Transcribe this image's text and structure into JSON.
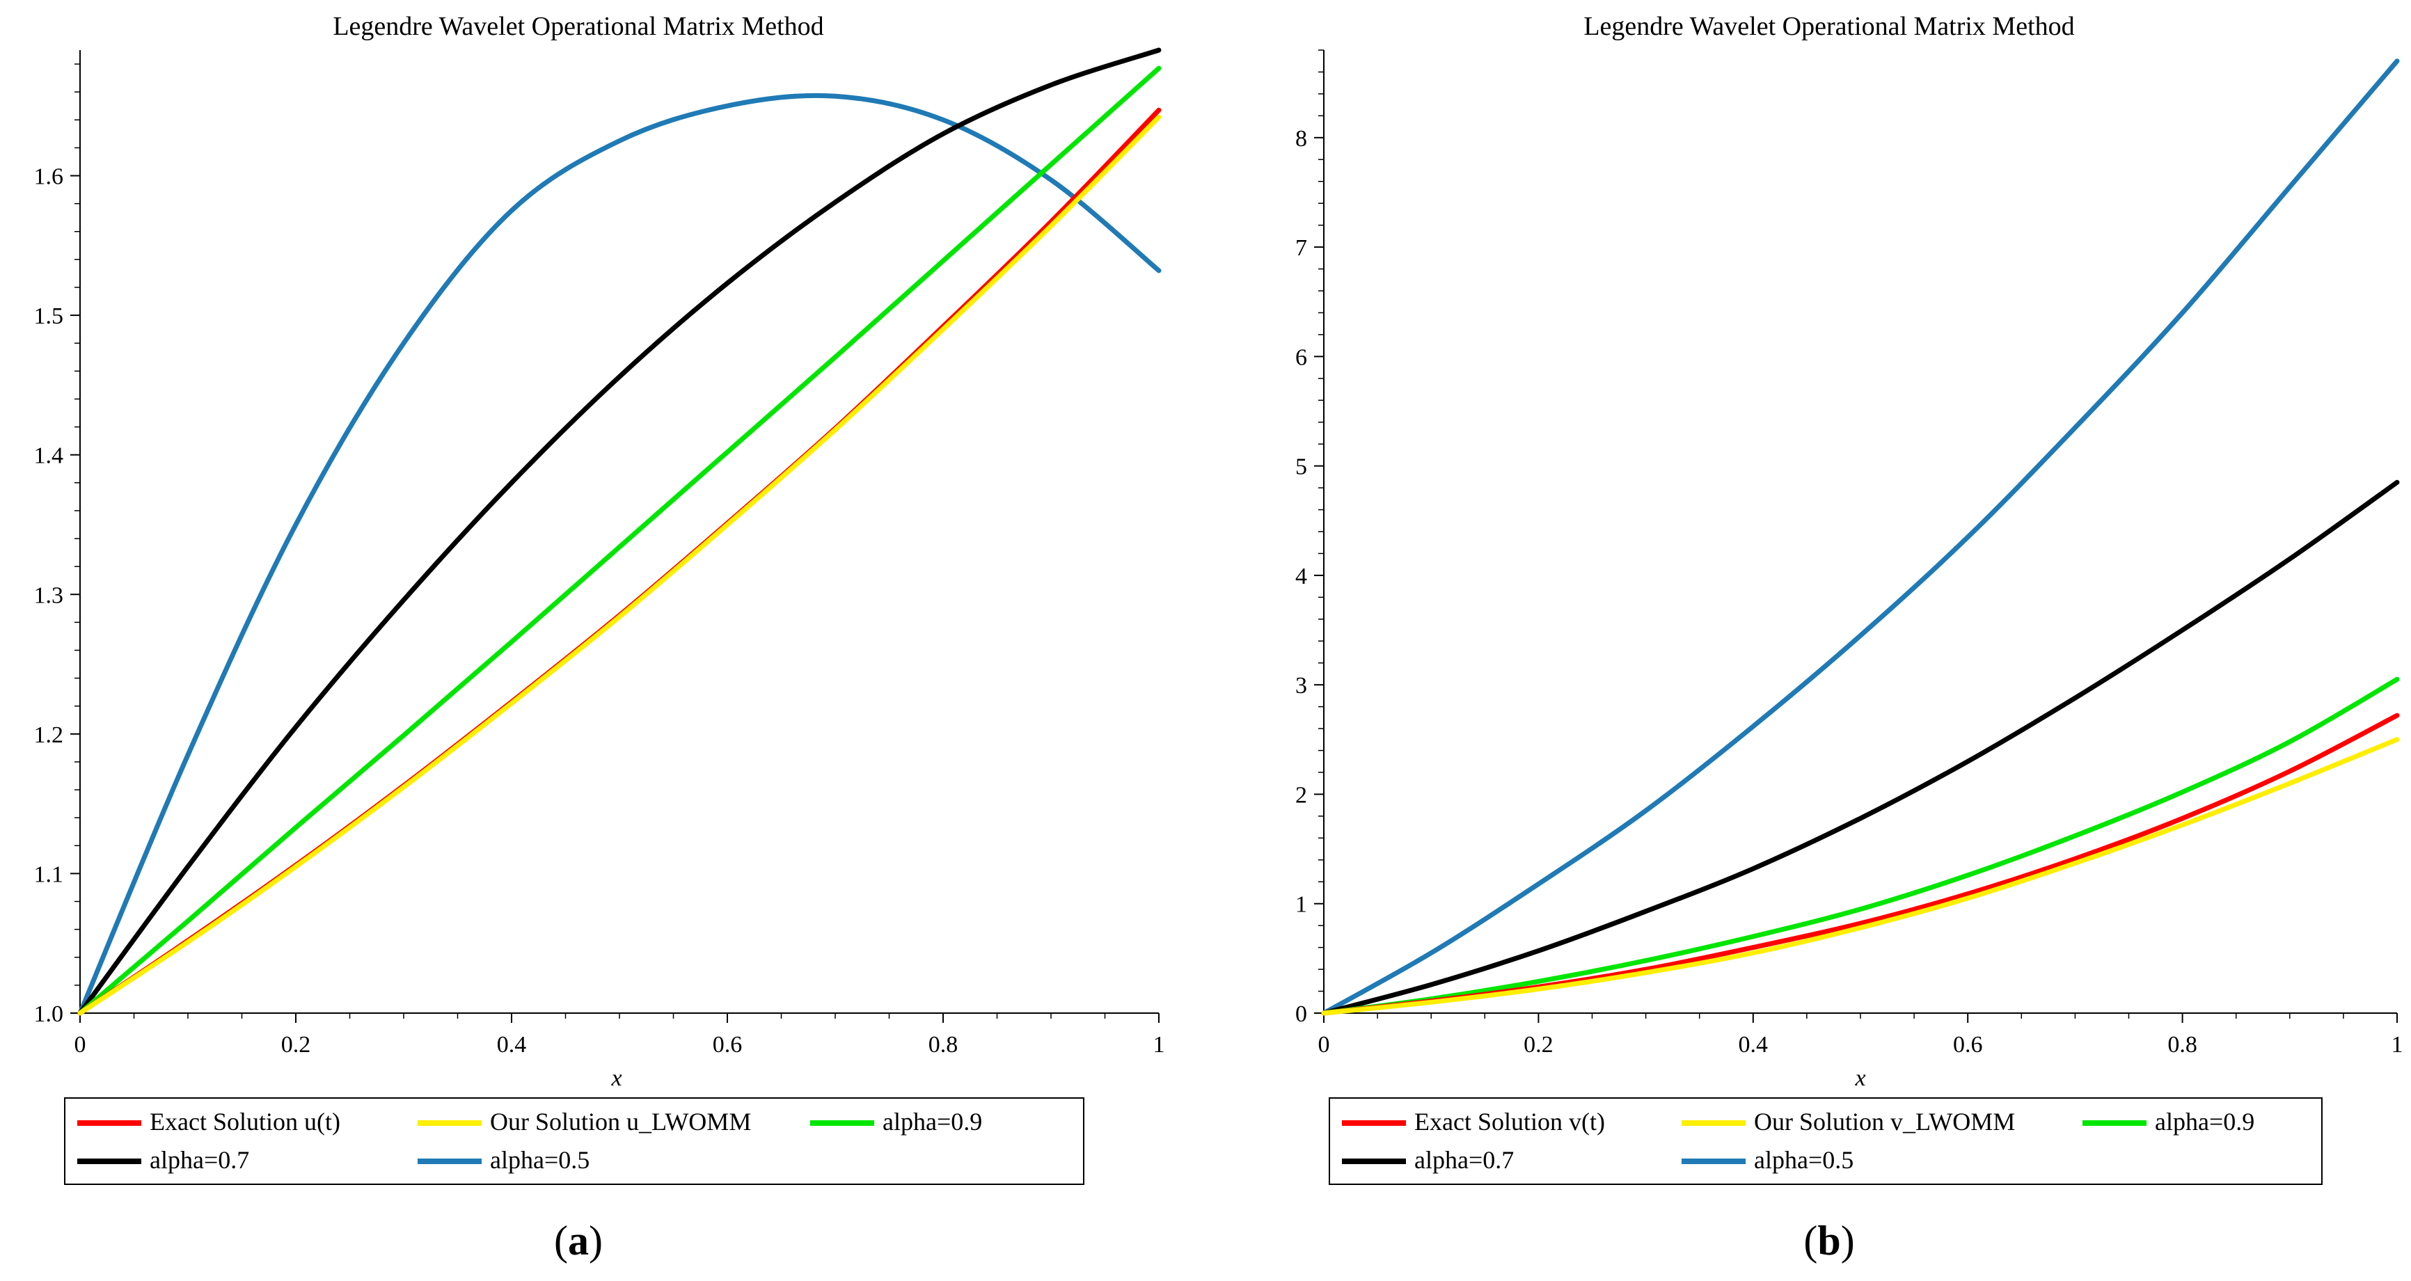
{
  "chart_data": [
    {
      "type": "line",
      "title": "Legendre Wavelet Operational Matrix Method",
      "xlabel": "x",
      "ylabel": "",
      "xlim": [
        0,
        1
      ],
      "ylim": [
        1.0,
        1.69
      ],
      "xticks": [
        0,
        0.2,
        0.4,
        0.6,
        0.8,
        1
      ],
      "xtick_labels": [
        "0",
        "0.2",
        "0.4",
        "0.6",
        "0.8",
        "1"
      ],
      "yticks": [
        1.0,
        1.1,
        1.2,
        1.3,
        1.4,
        1.5,
        1.6
      ],
      "ytick_labels": [
        "1.0",
        "1.1",
        "1.2",
        "1.3",
        "1.4",
        "1.5",
        "1.6"
      ],
      "caption_letter": "a",
      "legend": {
        "placement": "bottom",
        "rows": [
          [
            "Exact Solution u(t)",
            "Our Solution u_LWOMM",
            "alpha=0.9"
          ],
          [
            "alpha=0.7",
            "alpha=0.5"
          ]
        ]
      },
      "x": [
        0,
        0.1,
        0.2,
        0.3,
        0.4,
        0.5,
        0.6,
        0.7,
        0.8,
        0.9,
        1.0
      ],
      "series": [
        {
          "name": "Exact Solution u(t)",
          "color": "#ff0000",
          "values": [
            1.0,
            1.052,
            1.106,
            1.163,
            1.223,
            1.285,
            1.351,
            1.419,
            1.492,
            1.567,
            1.647
          ]
        },
        {
          "name": "Our Solution u_LWOMM",
          "color": "#ffee00",
          "values": [
            1.0,
            1.051,
            1.105,
            1.162,
            1.222,
            1.284,
            1.35,
            1.418,
            1.49,
            1.564,
            1.642
          ]
        },
        {
          "name": "alpha=0.9",
          "color": "#00e600",
          "values": [
            1.0,
            1.066,
            1.133,
            1.199,
            1.266,
            1.334,
            1.402,
            1.47,
            1.539,
            1.608,
            1.677
          ]
        },
        {
          "name": "alpha=0.7",
          "color": "#000000",
          "values": [
            1.0,
            1.105,
            1.205,
            1.296,
            1.38,
            1.456,
            1.523,
            1.581,
            1.63,
            1.665,
            1.69
          ]
        },
        {
          "name": "alpha=0.5",
          "color": "#1f7ab5",
          "values": [
            1.0,
            1.185,
            1.35,
            1.48,
            1.575,
            1.625,
            1.65,
            1.657,
            1.64,
            1.597,
            1.532
          ]
        }
      ]
    },
    {
      "type": "line",
      "title": "Legendre Wavelet Operational Matrix Method",
      "xlabel": "x",
      "ylabel": "",
      "xlim": [
        0,
        1
      ],
      "ylim": [
        0,
        8.8
      ],
      "xticks": [
        0,
        0.2,
        0.4,
        0.6,
        0.8,
        1
      ],
      "xtick_labels": [
        "0",
        "0.2",
        "0.4",
        "0.6",
        "0.8",
        "1"
      ],
      "yticks": [
        0,
        1,
        2,
        3,
        4,
        5,
        6,
        7,
        8
      ],
      "ytick_labels": [
        "0",
        "1",
        "2",
        "3",
        "4",
        "5",
        "6",
        "7",
        "8"
      ],
      "caption_letter": "b",
      "legend": {
        "placement": "bottom",
        "rows": [
          [
            "Exact Solution v(t)",
            "Our Solution v_LWOMM",
            "alpha=0.9"
          ],
          [
            "alpha=0.7",
            "alpha=0.5"
          ]
        ]
      },
      "x": [
        0,
        0.1,
        0.2,
        0.3,
        0.4,
        0.5,
        0.6,
        0.7,
        0.8,
        0.9,
        1.0
      ],
      "series": [
        {
          "name": "Exact Solution v(t)",
          "color": "#ff0000",
          "values": [
            0,
            0.11,
            0.24,
            0.4,
            0.6,
            0.82,
            1.09,
            1.41,
            1.78,
            2.21,
            2.72
          ]
        },
        {
          "name": "Our Solution v_LWOMM",
          "color": "#ffee00",
          "values": [
            0,
            0.1,
            0.22,
            0.37,
            0.55,
            0.78,
            1.05,
            1.37,
            1.72,
            2.1,
            2.5
          ]
        },
        {
          "name": "alpha=0.9",
          "color": "#00e600",
          "values": [
            0,
            0.13,
            0.29,
            0.48,
            0.7,
            0.95,
            1.26,
            1.62,
            2.02,
            2.48,
            3.05
          ]
        },
        {
          "name": "alpha=0.7",
          "color": "#000000",
          "values": [
            0,
            0.26,
            0.57,
            0.93,
            1.32,
            1.78,
            2.3,
            2.88,
            3.5,
            4.15,
            4.85
          ]
        },
        {
          "name": "alpha=0.5",
          "color": "#1f7ab5",
          "values": [
            0,
            0.55,
            1.18,
            1.85,
            2.62,
            3.45,
            4.35,
            5.35,
            6.4,
            7.55,
            8.7
          ]
        }
      ]
    }
  ]
}
